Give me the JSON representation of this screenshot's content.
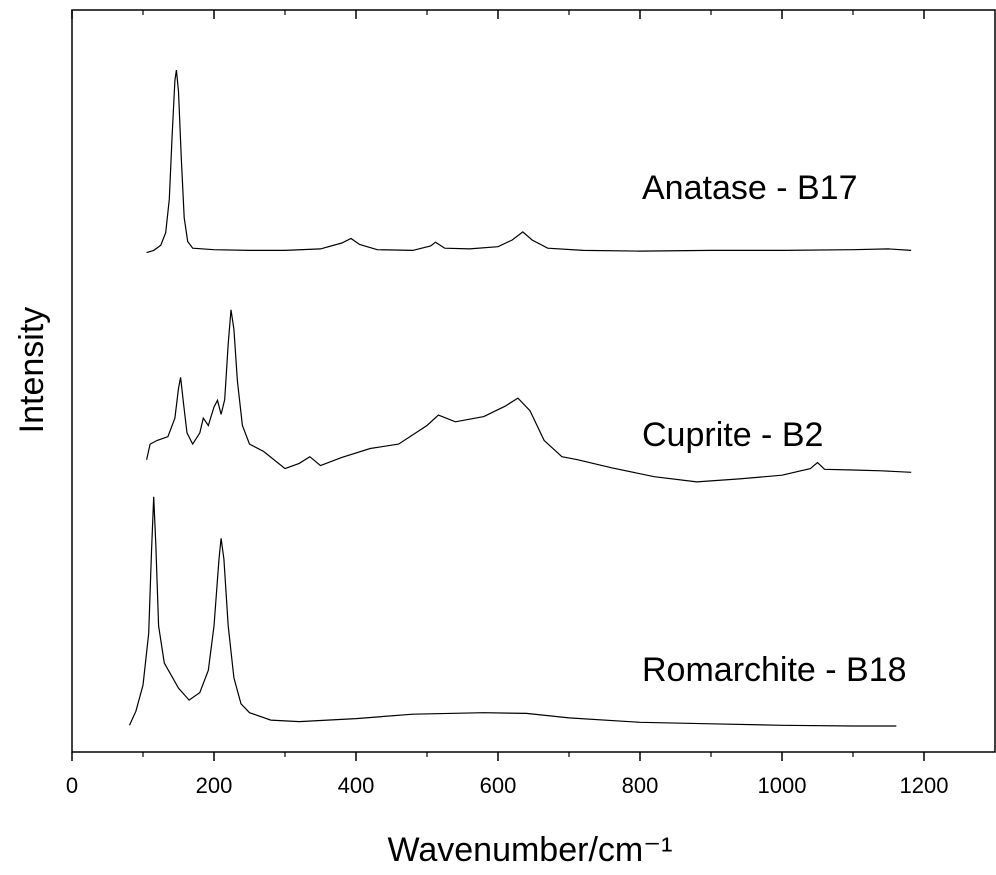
{
  "chart_data": {
    "type": "line",
    "x_label": "Wavenumber/cm⁻¹",
    "y_label": "Intensity",
    "xlim": [
      0,
      1300
    ],
    "xticks": [
      0,
      200,
      400,
      600,
      800,
      1000,
      1200
    ],
    "ylim": [
      0,
      100
    ],
    "series": [
      {
        "name": "Anatase - B17",
        "color": "#000000",
        "x": [
          105,
          115,
          125,
          132,
          137,
          141,
          145,
          147,
          150,
          154,
          158,
          163,
          170,
          200,
          250,
          300,
          350,
          380,
          393,
          405,
          430,
          480,
          505,
          512,
          525,
          560,
          600,
          620,
          635,
          648,
          670,
          720,
          800,
          900,
          1000,
          1100,
          1150,
          1182
        ],
        "values": [
          67.3,
          67.6,
          68.3,
          70.0,
          74.5,
          83,
          90.5,
          91.9,
          89,
          80,
          72,
          68.8,
          67.9,
          67.7,
          67.6,
          67.6,
          67.8,
          68.6,
          69.2,
          68.4,
          67.7,
          67.6,
          68.2,
          68.7,
          67.9,
          67.8,
          68.1,
          69.0,
          70.1,
          69.0,
          67.9,
          67.6,
          67.5,
          67.6,
          67.6,
          67.7,
          67.8,
          67.6
        ]
      },
      {
        "name": "Cuprite - B2",
        "color": "#000000",
        "x": [
          105,
          110,
          120,
          135,
          145,
          150,
          153,
          157,
          162,
          170,
          180,
          185,
          192,
          200,
          205,
          210,
          215,
          220,
          224,
          228,
          233,
          240,
          250,
          270,
          300,
          320,
          335,
          350,
          380,
          420,
          460,
          500,
          516,
          540,
          580,
          610,
          628,
          645,
          665,
          690,
          712,
          760,
          820,
          880,
          940,
          1000,
          1040,
          1050,
          1060,
          1100,
          1140,
          1182
        ],
        "values": [
          39.4,
          41.5,
          42.0,
          42.5,
          45,
          49,
          50.5,
          47,
          43,
          41.5,
          43,
          45,
          44,
          46.5,
          47.4,
          45.5,
          47.5,
          55,
          59.6,
          57,
          50,
          44,
          41.5,
          40.5,
          38.2,
          38.9,
          39.8,
          38.6,
          39.7,
          40.9,
          41.5,
          44,
          45.4,
          44.5,
          45.2,
          46.6,
          47.7,
          46,
          42,
          39.8,
          39.4,
          38.3,
          37.1,
          36.4,
          36.8,
          37.3,
          38.2,
          39.0,
          38.1,
          38.0,
          37.9,
          37.7
        ]
      },
      {
        "name": "Romarchite - B18",
        "color": "#000000",
        "x": [
          81,
          90,
          100,
          108,
          112,
          115,
          118,
          122,
          130,
          140,
          150,
          165,
          180,
          192,
          200,
          207,
          210,
          214,
          220,
          228,
          238,
          250,
          280,
          320,
          400,
          480,
          580,
          640,
          700,
          800,
          900,
          1000,
          1100,
          1161
        ],
        "values": [
          3.6,
          5.5,
          9,
          16,
          27,
          34.4,
          28,
          17,
          12,
          10.3,
          8.6,
          7.0,
          8,
          11,
          17,
          26,
          28.8,
          26,
          17,
          10,
          6.5,
          5.3,
          4.3,
          4.1,
          4.5,
          5.1,
          5.3,
          5.2,
          4.6,
          4.0,
          3.8,
          3.6,
          3.5,
          3.5
        ]
      }
    ]
  }
}
